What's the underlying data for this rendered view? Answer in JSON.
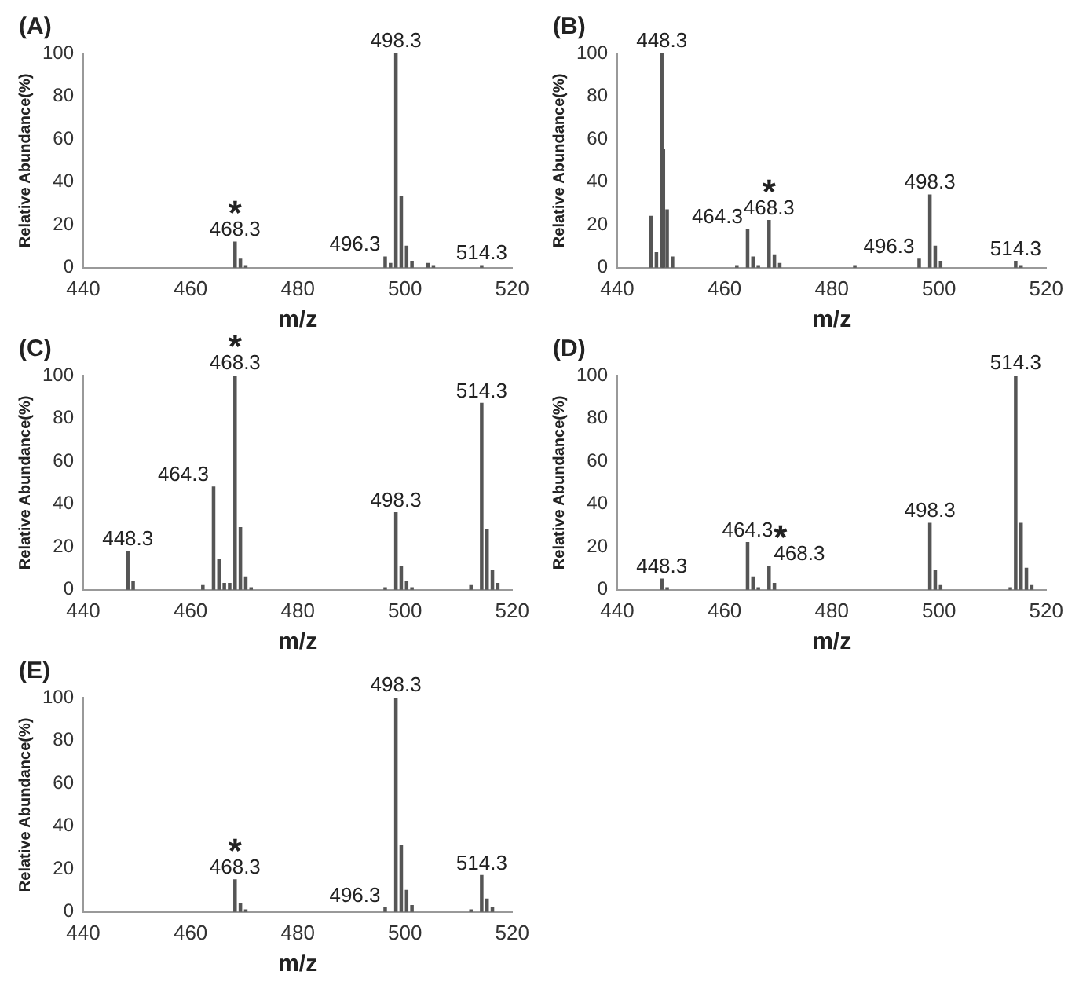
{
  "chart_data": [
    {
      "type": "bar",
      "title": "(A)",
      "xlabel": "m/z",
      "ylabel": "Relative Abundance(%)",
      "color": "#555555",
      "xlim": [
        440,
        520
      ],
      "xticks": [
        440,
        460,
        480,
        500,
        520
      ],
      "ylim": [
        0,
        100
      ],
      "yticks": [
        0,
        20,
        40,
        60,
        80,
        100
      ],
      "grid": false,
      "x": [
        468.3,
        469.3,
        470.3,
        496.3,
        497.3,
        498.3,
        499.3,
        500.3,
        501.3,
        504.3,
        505.3,
        514.3
      ],
      "values": [
        12,
        4,
        1,
        5,
        2,
        100,
        33,
        10,
        3,
        2,
        1,
        1
      ],
      "annotations": [
        {
          "text": "498.3",
          "x": 498.3,
          "y": 100
        },
        {
          "text": "468.3",
          "x": 468.3,
          "y": 12
        },
        {
          "text": "*",
          "x": 468.3,
          "y": 12
        },
        {
          "text": "496.3",
          "x": 496.3,
          "y": 5
        },
        {
          "text": "514.3",
          "x": 514.3,
          "y": 1
        }
      ]
    },
    {
      "type": "bar",
      "title": "(B)",
      "xlabel": "m/z",
      "ylabel": "Relative Abundance(%)",
      "color": "#555555",
      "xlim": [
        440,
        520
      ],
      "xticks": [
        440,
        460,
        480,
        500,
        520
      ],
      "ylim": [
        0,
        100
      ],
      "yticks": [
        0,
        20,
        40,
        60,
        80,
        100
      ],
      "grid": false,
      "x": [
        446.3,
        447.3,
        448.3,
        448.6,
        449.3,
        450.3,
        462.3,
        464.3,
        465.3,
        466.3,
        468.3,
        469.3,
        470.3,
        484.3,
        496.3,
        498.3,
        499.3,
        500.3,
        514.3,
        515.3
      ],
      "values": [
        24,
        7,
        100,
        55,
        27,
        5,
        1,
        18,
        5,
        1,
        22,
        6,
        2,
        1,
        4,
        34,
        10,
        3,
        3,
        1
      ],
      "annotations": [
        {
          "text": "448.3",
          "x": 448.3,
          "y": 100
        },
        {
          "text": "464.3",
          "x": 464.3,
          "y": 18
        },
        {
          "text": "468.3",
          "x": 468.3,
          "y": 22
        },
        {
          "text": "*",
          "x": 468.3,
          "y": 22
        },
        {
          "text": "498.3",
          "x": 498.3,
          "y": 34
        },
        {
          "text": "496.3",
          "x": 496.3,
          "y": 4
        },
        {
          "text": "514.3",
          "x": 514.3,
          "y": 3
        }
      ]
    },
    {
      "type": "bar",
      "title": "(C)",
      "xlabel": "m/z",
      "ylabel": "Relative Abundance(%)",
      "color": "#555555",
      "xlim": [
        440,
        520
      ],
      "xticks": [
        440,
        460,
        480,
        500,
        520
      ],
      "ylim": [
        0,
        100
      ],
      "yticks": [
        0,
        20,
        40,
        60,
        80,
        100
      ],
      "grid": false,
      "x": [
        448.3,
        449.3,
        462.3,
        464.3,
        465.3,
        466.3,
        467.3,
        468.3,
        469.3,
        470.3,
        471.3,
        496.3,
        498.3,
        499.3,
        500.3,
        501.3,
        512.3,
        514.3,
        515.3,
        516.3,
        517.3
      ],
      "values": [
        18,
        4,
        2,
        48,
        14,
        3,
        3,
        100,
        29,
        6,
        1,
        1,
        36,
        11,
        4,
        1,
        2,
        87,
        28,
        9,
        3
      ],
      "annotations": [
        {
          "text": "468.3",
          "x": 468.3,
          "y": 100
        },
        {
          "text": "*",
          "x": 468.3,
          "y": 100
        },
        {
          "text": "514.3",
          "x": 514.3,
          "y": 87
        },
        {
          "text": "464.3",
          "x": 464.3,
          "y": 48
        },
        {
          "text": "498.3",
          "x": 498.3,
          "y": 36
        },
        {
          "text": "448.3",
          "x": 448.3,
          "y": 18
        }
      ]
    },
    {
      "type": "bar",
      "title": "(D)",
      "xlabel": "m/z",
      "ylabel": "Relative Abundance(%)",
      "color": "#555555",
      "xlim": [
        440,
        520
      ],
      "xticks": [
        440,
        460,
        480,
        500,
        520
      ],
      "ylim": [
        0,
        100
      ],
      "yticks": [
        0,
        20,
        40,
        60,
        80,
        100
      ],
      "grid": false,
      "x": [
        448.3,
        449.3,
        464.3,
        465.3,
        466.3,
        468.3,
        469.3,
        498.3,
        499.3,
        500.3,
        513.3,
        514.3,
        515.3,
        516.3,
        517.3
      ],
      "values": [
        5,
        1,
        22,
        6,
        1,
        11,
        3,
        31,
        9,
        2,
        1,
        100,
        31,
        10,
        2
      ],
      "annotations": [
        {
          "text": "514.3",
          "x": 514.3,
          "y": 100
        },
        {
          "text": "498.3",
          "x": 498.3,
          "y": 31
        },
        {
          "text": "464.3",
          "x": 464.3,
          "y": 22
        },
        {
          "text": "468.3",
          "x": 468.3,
          "y": 11
        },
        {
          "text": "*",
          "x": 468.3,
          "y": 11
        },
        {
          "text": "448.3",
          "x": 448.3,
          "y": 5
        }
      ]
    },
    {
      "type": "bar",
      "title": "(E)",
      "xlabel": "m/z",
      "ylabel": "Relative Abundance(%)",
      "color": "#555555",
      "xlim": [
        440,
        520
      ],
      "xticks": [
        440,
        460,
        480,
        500,
        520
      ],
      "ylim": [
        0,
        100
      ],
      "yticks": [
        0,
        20,
        40,
        60,
        80,
        100
      ],
      "grid": false,
      "x": [
        468.3,
        469.3,
        470.3,
        496.3,
        498.3,
        499.3,
        500.3,
        501.3,
        512.3,
        514.3,
        515.3,
        516.3
      ],
      "values": [
        15,
        4,
        1,
        2,
        100,
        31,
        10,
        3,
        1,
        17,
        6,
        2
      ],
      "annotations": [
        {
          "text": "498.3",
          "x": 498.3,
          "y": 100
        },
        {
          "text": "468.3",
          "x": 468.3,
          "y": 15
        },
        {
          "text": "*",
          "x": 468.3,
          "y": 15
        },
        {
          "text": "514.3",
          "x": 514.3,
          "y": 17
        },
        {
          "text": "496.3",
          "x": 496.3,
          "y": 2
        }
      ]
    }
  ]
}
